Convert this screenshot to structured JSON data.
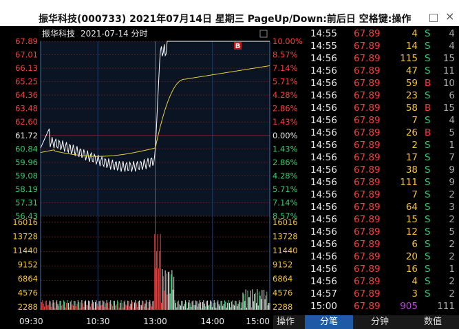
{
  "window": {
    "title": "振华科技(000733) 2021年07月14日 星期三 PageUp/Down:前后日 空格键:操作",
    "max_icon": "maximize-icon",
    "close_icon": "close-icon",
    "close_glyph": "×"
  },
  "chart": {
    "stock_name": "振华科技",
    "date_label": "2021-07-14 分时",
    "buy_marker": "B",
    "price_labels": [
      "67.89",
      "67.01",
      "66.13",
      "65.25",
      "64.36",
      "63.48",
      "62.60",
      "61.72",
      "60.84",
      "59.96",
      "59.08",
      "58.19",
      "57.31",
      "56.43"
    ],
    "pct_labels": [
      "10.00%",
      "8.57%",
      "7.14%",
      "5.71%",
      "4.28%",
      "2.86%",
      "1.43%",
      "0.00%",
      "1.43%",
      "2.86%",
      "4.28%",
      "5.71%",
      "7.14%",
      "8.57%"
    ],
    "volume_labels": [
      "16016",
      "13728",
      "11440",
      "9152",
      "6864",
      "4576",
      "2288"
    ],
    "time_labels": [
      "09:30",
      "10:30",
      "13:00",
      "14:00",
      "15:00"
    ],
    "colors": {
      "up": "#ff3c3c",
      "down": "#2ecc71",
      "flat": "#e8e8e8",
      "price_line": "#ffffff",
      "avg_line": "#e6d33a",
      "grid": "#5a1a1a",
      "vgrid": "#1c3d6e"
    }
  },
  "ticks": [
    {
      "time": "14:55",
      "price": "67.89",
      "vol": "4",
      "side": "S",
      "num": "4"
    },
    {
      "time": "14:55",
      "price": "67.89",
      "vol": "14",
      "side": "S",
      "num": "4"
    },
    {
      "time": "14:56",
      "price": "67.89",
      "vol": "115",
      "side": "S",
      "num": "15"
    },
    {
      "time": "14:56",
      "price": "67.89",
      "vol": "47",
      "side": "S",
      "num": "11"
    },
    {
      "time": "14:56",
      "price": "67.89",
      "vol": "59",
      "side": "B",
      "num": "10"
    },
    {
      "time": "14:56",
      "price": "67.89",
      "vol": "23",
      "side": "S",
      "num": "6"
    },
    {
      "time": "14:56",
      "price": "67.89",
      "vol": "58",
      "side": "B",
      "num": "15"
    },
    {
      "time": "14:56",
      "price": "67.89",
      "vol": "7",
      "side": "S",
      "num": "4"
    },
    {
      "time": "14:56",
      "price": "67.89",
      "vol": "26",
      "side": "B",
      "num": "5"
    },
    {
      "time": "14:56",
      "price": "67.89",
      "vol": "2",
      "side": "S",
      "num": "1"
    },
    {
      "time": "14:56",
      "price": "67.89",
      "vol": "17",
      "side": "S",
      "num": "7"
    },
    {
      "time": "14:56",
      "price": "67.89",
      "vol": "38",
      "side": "S",
      "num": "9"
    },
    {
      "time": "14:56",
      "price": "67.89",
      "vol": "111",
      "side": "S",
      "num": "9"
    },
    {
      "time": "14:56",
      "price": "67.89",
      "vol": "7",
      "side": "S",
      "num": "2"
    },
    {
      "time": "14:56",
      "price": "67.89",
      "vol": "64",
      "side": "S",
      "num": "3"
    },
    {
      "time": "14:56",
      "price": "67.89",
      "vol": "15",
      "side": "S",
      "num": "2"
    },
    {
      "time": "14:56",
      "price": "67.89",
      "vol": "12",
      "side": "S",
      "num": "5"
    },
    {
      "time": "14:56",
      "price": "67.89",
      "vol": "6",
      "side": "S",
      "num": "2"
    },
    {
      "time": "14:56",
      "price": "67.89",
      "vol": "20",
      "side": "S",
      "num": "2"
    },
    {
      "time": "14:56",
      "price": "67.89",
      "vol": "16",
      "side": "S",
      "num": "1"
    },
    {
      "time": "14:56",
      "price": "67.89",
      "vol": "4",
      "side": "S",
      "num": "2"
    },
    {
      "time": "14:57",
      "price": "67.89",
      "vol": "3",
      "side": "S",
      "num": "2"
    },
    {
      "time": "15:00",
      "price": "67.89",
      "vol": "905",
      "side": "",
      "num": "111"
    }
  ],
  "tabs": [
    "操作",
    "分笔",
    "分钟",
    "数值"
  ],
  "active_tab": "分笔"
}
